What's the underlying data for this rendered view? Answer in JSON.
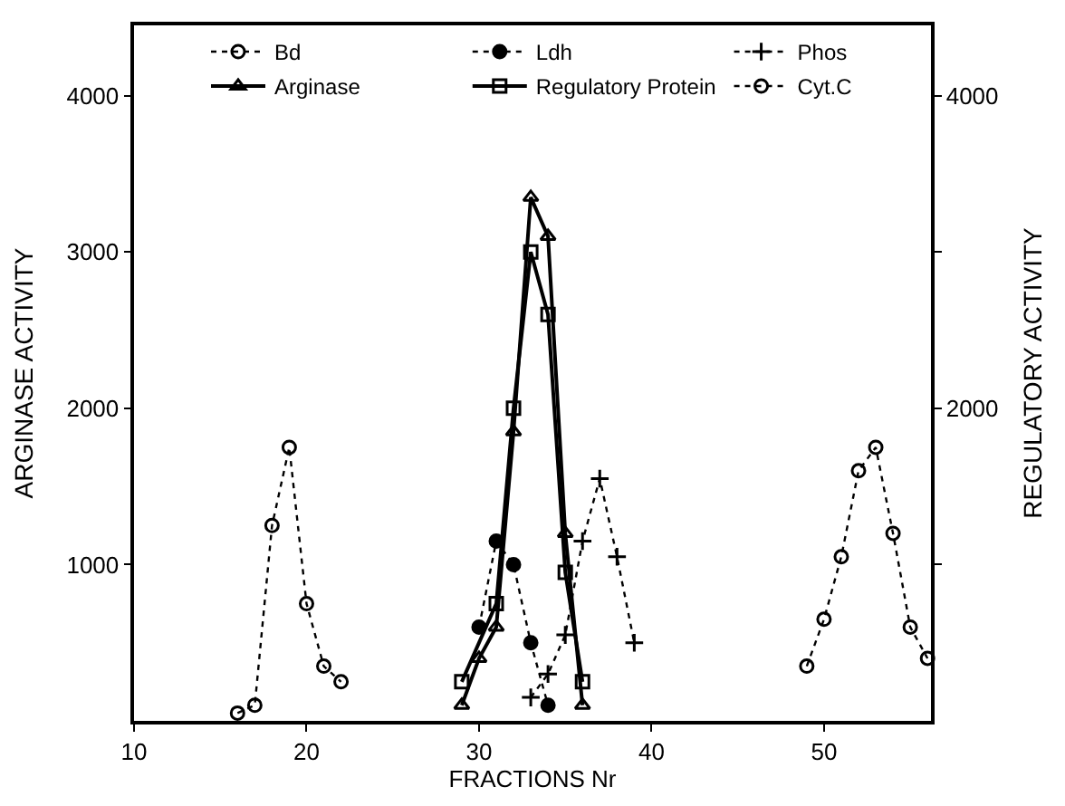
{
  "chart_data": {
    "type": "line",
    "xlabel": "FRACTIONS Nr",
    "ylabel": "ARGINASE ACTIVITY",
    "y2label": "REGULATORY ACTIVITY",
    "xlim": [
      10,
      56.2
    ],
    "xticks": [
      10,
      20,
      30,
      40,
      50
    ],
    "ylim": [
      0,
      4450
    ],
    "yticks": [
      1000,
      2000,
      3000,
      4000
    ],
    "y2lim": [
      0,
      4450
    ],
    "y2ticks": [
      {
        "value": 1000,
        "label": null
      },
      2000,
      {
        "value": 3000,
        "label": null
      },
      4000
    ],
    "legend": "top",
    "series": [
      {
        "name": "Bd",
        "color": "#000000",
        "marker": "circle-open",
        "line_style": "dotted",
        "x": [
          16,
          17,
          18,
          19,
          20,
          21,
          22
        ],
        "values": [
          50,
          100,
          1250,
          1750,
          750,
          350,
          250
        ]
      },
      {
        "name": "Ldh",
        "color": "#000000",
        "marker": "circle",
        "line_style": "dotted",
        "x": [
          30,
          31,
          32,
          33,
          34
        ],
        "values": [
          600,
          1150,
          1000,
          500,
          100
        ]
      },
      {
        "name": "Phos",
        "color": "#000000",
        "marker": "cross",
        "line_style": "dotted",
        "x": [
          33,
          34,
          35,
          36,
          37,
          38,
          39
        ],
        "values": [
          150,
          300,
          550,
          1150,
          1550,
          1050,
          500
        ]
      },
      {
        "name": "Arginase",
        "color": "#000000",
        "marker": "triangle-open",
        "line_style": "solid",
        "x": [
          29,
          30,
          31,
          32,
          33,
          34,
          35,
          36
        ],
        "values": [
          100,
          400,
          600,
          1850,
          3350,
          3100,
          1200,
          100
        ]
      },
      {
        "name": "Regulatory Protein",
        "color": "#000000",
        "marker": "square-open",
        "line_style": "solid",
        "axis": "y2",
        "x": [
          29,
          31,
          32,
          33,
          34,
          35,
          36
        ],
        "values": [
          250,
          750,
          2000,
          3000,
          2600,
          950,
          250
        ]
      },
      {
        "name": "Cyt.C",
        "color": "#000000",
        "marker": "circle-open",
        "line_style": "dotted",
        "x": [
          49,
          50,
          51,
          52,
          53,
          54,
          55,
          56
        ],
        "values": [
          350,
          650,
          1050,
          1600,
          1750,
          1200,
          600,
          400
        ]
      }
    ]
  }
}
